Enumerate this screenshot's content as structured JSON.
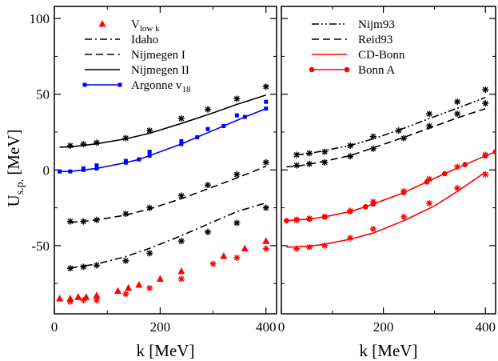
{
  "chart_data": [
    {
      "type": "scatter",
      "panel": "left",
      "xlabel": "k [MeV]",
      "ylabel_main": "U",
      "ylabel_sub": "s.p.",
      "ylabel_unit": " [MeV]",
      "xlim": [
        0,
        420
      ],
      "ylim": [
        -95,
        108
      ],
      "xticks": [
        0,
        200,
        400
      ],
      "yticks": [
        -50,
        0,
        50,
        100
      ],
      "ytick_labels": [
        "-50",
        "0",
        "50",
        "100"
      ],
      "legend_position": "top-left",
      "series": [
        {
          "name": "V_low k",
          "label_main": "V",
          "label_sub": "low k",
          "color": "#ff0000",
          "style": "markers",
          "marker": "triangle",
          "legend_marker": "triangle",
          "x": [
            10,
            30,
            45,
            60,
            80,
            120,
            140,
            160,
            200,
            240,
            320,
            360,
            400
          ],
          "y": [
            -85,
            -85,
            -84,
            -84,
            -83,
            -80,
            -78,
            -76,
            -72,
            -67,
            -57,
            -52,
            -47
          ]
        },
        {
          "name": "V_low k stars",
          "legend": false,
          "color": "#ff0000",
          "style": "markers",
          "marker": "star",
          "x": [
            30,
            55,
            80,
            135,
            180,
            240,
            300,
            345,
            400
          ],
          "y": [
            -87,
            -86,
            -86,
            -82,
            -78,
            -72,
            -62,
            -58,
            -52
          ]
        },
        {
          "name": "Idaho",
          "label_main": "Idaho",
          "legend_dash": "dashdot",
          "color": "#000000",
          "style": "line",
          "dash": "dashdot",
          "marker": "star",
          "line_marker": "none",
          "x": [
            30,
            55,
            80,
            135,
            180,
            240,
            300,
            345,
            400
          ],
          "y": [
            -64.7,
            -63.5,
            -62.1,
            -57.2,
            -51.8,
            -43.4,
            -34.3,
            -27.5,
            -21.8
          ],
          "marker_x": [
            30,
            55,
            80,
            135,
            180,
            240,
            290,
            345,
            400
          ],
          "marker_y": [
            -65,
            -64,
            -63,
            -60,
            -55,
            -47,
            -41,
            -35,
            -25
          ]
        },
        {
          "name": "Nijmegen I",
          "label_main": "Nijmegen I",
          "legend_dash": "dashed",
          "color": "#000000",
          "style": "line",
          "dash": "dashed",
          "marker": "star",
          "line_marker": "none",
          "x": [
            30,
            55,
            80,
            135,
            180,
            240,
            300,
            345,
            400
          ],
          "y": [
            -34.7,
            -34.0,
            -33.0,
            -29.8,
            -25.8,
            -19.0,
            -11.2,
            -5.3,
            2.4
          ],
          "marker_x": [
            30,
            55,
            80,
            135,
            180,
            240,
            290,
            345,
            400
          ],
          "marker_y": [
            -34,
            -34,
            -33,
            -29,
            -25,
            -17,
            -10,
            -3,
            5
          ]
        },
        {
          "name": "Nijmegen II",
          "label_main": "Nijmegen II",
          "legend_dash": "solid",
          "color": "#000000",
          "style": "line",
          "dash": "solid",
          "marker": "star",
          "line_marker": "none",
          "x": [
            10,
            30,
            55,
            80,
            135,
            180,
            240,
            300,
            345,
            400
          ],
          "y": [
            15.0,
            15.3,
            16.2,
            17.3,
            20.5,
            24.2,
            30.7,
            37.7,
            43.3,
            49.5
          ],
          "marker_x": [
            30,
            55,
            80,
            135,
            180,
            240,
            290,
            345,
            400
          ],
          "marker_y": [
            16,
            17,
            18,
            21,
            26,
            34,
            40,
            47,
            55
          ]
        },
        {
          "name": "Argonne v18",
          "label_main": "Argonne v",
          "label_sub": "18",
          "legend_dash": "solid",
          "color": "#0000ff",
          "style": "line",
          "dash": "solid",
          "marker": "square",
          "line_marker": "square",
          "legend_marker": "square",
          "x": [
            10,
            30,
            55,
            80,
            135,
            160,
            180,
            240,
            270,
            320,
            360,
            400
          ],
          "y": [
            -1.0,
            -1.0,
            0.0,
            1.0,
            4.8,
            7.0,
            9.4,
            17.1,
            21.6,
            29.0,
            35.0,
            40.5
          ],
          "marker_x": [
            55,
            80,
            135,
            180,
            240,
            290,
            345,
            400
          ],
          "marker_y": [
            1,
            3,
            6,
            12,
            19,
            27,
            36,
            45
          ]
        }
      ]
    },
    {
      "type": "scatter",
      "panel": "right",
      "xlabel": "k [MeV]",
      "xlim": [
        0,
        420
      ],
      "ylim": [
        -95,
        108
      ],
      "xticks": [
        0,
        200,
        400
      ],
      "yticks": [
        -50,
        0,
        50,
        100
      ],
      "legend_position": "top-left",
      "series": [
        {
          "name": "Nijm93",
          "label_main": "Nijm93",
          "legend_dash": "dashdotdot",
          "color": "#000000",
          "style": "line",
          "dash": "dashdotdot",
          "marker": "star",
          "line_marker": "none",
          "x": [
            30,
            55,
            80,
            135,
            180,
            240,
            300,
            345,
            400
          ],
          "y": [
            10.0,
            10.9,
            12.5,
            16.2,
            20.5,
            27.5,
            35.2,
            40.7,
            47.9
          ],
          "marker_x": [
            30,
            55,
            85,
            135,
            180,
            230,
            290,
            345,
            400
          ],
          "marker_y": [
            10,
            11,
            12,
            16,
            22,
            26,
            37,
            45,
            53
          ]
        },
        {
          "name": "Reid93",
          "label_main": "Reid93",
          "legend_dash": "dashed",
          "color": "#000000",
          "style": "line",
          "dash": "dashed",
          "marker": "star",
          "line_marker": "none",
          "x": [
            10,
            30,
            55,
            80,
            135,
            180,
            240,
            300,
            345,
            400
          ],
          "y": [
            2.0,
            2.5,
            3.8,
            5.5,
            9.4,
            14.6,
            21.5,
            28.8,
            34.4,
            40.5
          ],
          "marker_x": [
            30,
            55,
            85,
            135,
            180,
            240,
            290,
            345,
            400
          ],
          "marker_y": [
            3,
            4,
            5,
            9,
            14,
            21,
            29,
            37,
            44
          ]
        },
        {
          "name": "CD-Bonn",
          "label_main": "CD-Bonn",
          "legend_dash": "solid",
          "color": "#ff0000",
          "style": "line",
          "dash": "solid",
          "marker": "star",
          "line_marker": "none",
          "x": [
            10,
            30,
            55,
            80,
            135,
            180,
            240,
            300,
            345,
            400
          ],
          "y": [
            -51.0,
            -50.8,
            -50.3,
            -49.4,
            -45.8,
            -41.7,
            -33.5,
            -23.8,
            -14.2,
            -1.5
          ],
          "marker_x": [
            30,
            55,
            85,
            135,
            180,
            240,
            290,
            345,
            400
          ],
          "marker_y": [
            -52,
            -51,
            -50,
            -45,
            -39,
            -31,
            -22,
            -12,
            -3
          ]
        },
        {
          "name": "Bonn A",
          "label_main": "Bonn A",
          "legend_dash": "solid",
          "color": "#ff0000",
          "style": "line",
          "dash": "solid",
          "marker": "star",
          "line_marker": "circle",
          "legend_marker": "circle",
          "x": [
            10,
            30,
            55,
            85,
            135,
            165,
            180,
            240,
            285,
            320,
            360,
            400,
            420
          ],
          "y": [
            -33.5,
            -33.0,
            -32.5,
            -31.0,
            -27.5,
            -24.3,
            -22.5,
            -15.0,
            -8.0,
            -2.5,
            3.5,
            9.3,
            12.0
          ],
          "marker_x": [
            30,
            55,
            85,
            135,
            180,
            240,
            290,
            345,
            400
          ],
          "marker_y": [
            -33,
            -32,
            -31,
            -27,
            -21,
            -14,
            -6,
            2,
            10
          ]
        }
      ]
    }
  ]
}
